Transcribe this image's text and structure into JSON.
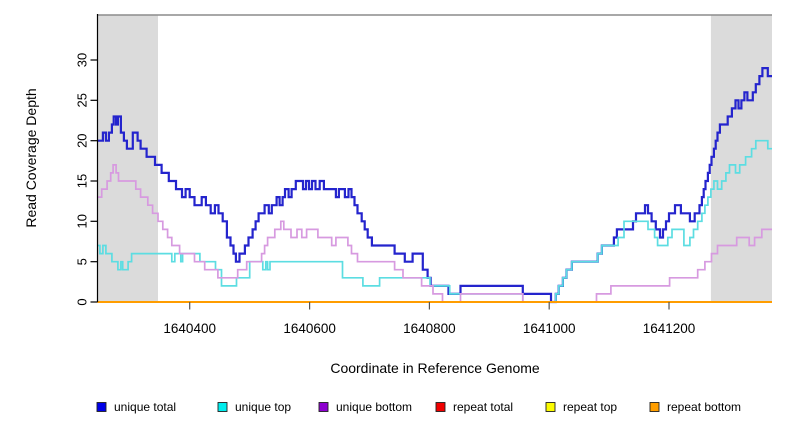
{
  "chart_data": {
    "type": "line",
    "subtype": "step-coverage",
    "title": "",
    "xlabel": "Coordinate in Reference Genome",
    "ylabel": "Read Coverage Depth",
    "xlim": [
      1640246,
      1641372
    ],
    "ylim": [
      0,
      35.5
    ],
    "x_ticks": [
      1640400,
      1640600,
      1640800,
      1641000,
      1641200
    ],
    "x_tick_labels": [
      "1640400",
      "1640600",
      "1640800",
      "1641000",
      "1641200"
    ],
    "y_ticks": [
      0,
      5,
      10,
      15,
      20,
      25,
      30
    ],
    "y_tick_labels": [
      "0",
      "5",
      "10",
      "15",
      "20",
      "25",
      "30"
    ],
    "grid": false,
    "legend_position": "bottom-horizontal",
    "shaded_regions": [
      [
        1640246,
        1640347
      ],
      [
        1641270,
        1641372
      ]
    ],
    "shaded_region_color": "#dbdbdb",
    "plot_border_color": "#8c8c8c",
    "series": [
      {
        "name": "unique total",
        "color": "#2424cd",
        "legend_color": "#0000e8",
        "line_width": 2.2,
        "steps": [
          [
            1640246,
            20
          ],
          [
            1640255,
            21
          ],
          [
            1640260,
            20
          ],
          [
            1640265,
            21
          ],
          [
            1640270,
            22
          ],
          [
            1640273,
            23
          ],
          [
            1640277,
            22
          ],
          [
            1640280,
            23
          ],
          [
            1640285,
            21
          ],
          [
            1640290,
            20
          ],
          [
            1640295,
            19
          ],
          [
            1640305,
            21
          ],
          [
            1640313,
            20
          ],
          [
            1640318,
            19
          ],
          [
            1640328,
            18
          ],
          [
            1640342,
            17
          ],
          [
            1640353,
            16
          ],
          [
            1640365,
            15
          ],
          [
            1640377,
            14
          ],
          [
            1640387,
            13
          ],
          [
            1640393,
            14
          ],
          [
            1640400,
            13
          ],
          [
            1640408,
            12
          ],
          [
            1640420,
            13
          ],
          [
            1640427,
            12
          ],
          [
            1640435,
            11
          ],
          [
            1640442,
            12
          ],
          [
            1640448,
            11
          ],
          [
            1640455,
            10
          ],
          [
            1640462,
            8
          ],
          [
            1640468,
            7
          ],
          [
            1640473,
            6
          ],
          [
            1640477,
            5
          ],
          [
            1640483,
            6
          ],
          [
            1640492,
            7
          ],
          [
            1640498,
            8
          ],
          [
            1640505,
            9
          ],
          [
            1640510,
            10
          ],
          [
            1640515,
            11
          ],
          [
            1640525,
            12
          ],
          [
            1640532,
            11
          ],
          [
            1640537,
            12
          ],
          [
            1640545,
            13
          ],
          [
            1640550,
            12
          ],
          [
            1640555,
            13
          ],
          [
            1640559,
            14
          ],
          [
            1640565,
            13
          ],
          [
            1640570,
            14
          ],
          [
            1640577,
            15
          ],
          [
            1640589,
            14
          ],
          [
            1640594,
            15
          ],
          [
            1640599,
            14
          ],
          [
            1640604,
            15
          ],
          [
            1640610,
            14
          ],
          [
            1640617,
            15
          ],
          [
            1640624,
            14
          ],
          [
            1640644,
            13
          ],
          [
            1640649,
            14
          ],
          [
            1640659,
            13
          ],
          [
            1640665,
            14
          ],
          [
            1640670,
            13
          ],
          [
            1640675,
            12
          ],
          [
            1640680,
            11
          ],
          [
            1640687,
            10
          ],
          [
            1640692,
            9
          ],
          [
            1640697,
            8
          ],
          [
            1640704,
            7
          ],
          [
            1640742,
            6
          ],
          [
            1640759,
            5
          ],
          [
            1640772,
            6
          ],
          [
            1640789,
            4
          ],
          [
            1640797,
            3
          ],
          [
            1640802,
            2
          ],
          [
            1640832,
            1
          ],
          [
            1640852,
            2
          ],
          [
            1640956,
            1
          ],
          [
            1641003,
            0
          ],
          [
            1641011,
            1
          ],
          [
            1641016,
            2
          ],
          [
            1641023,
            3
          ],
          [
            1641029,
            4
          ],
          [
            1641038,
            5
          ],
          [
            1641081,
            6
          ],
          [
            1641088,
            7
          ],
          [
            1641108,
            8
          ],
          [
            1641113,
            9
          ],
          [
            1641140,
            10
          ],
          [
            1641145,
            11
          ],
          [
            1641160,
            12
          ],
          [
            1641165,
            11
          ],
          [
            1641171,
            10
          ],
          [
            1641178,
            9
          ],
          [
            1641185,
            8
          ],
          [
            1641190,
            9
          ],
          [
            1641195,
            10
          ],
          [
            1641200,
            11
          ],
          [
            1641210,
            12
          ],
          [
            1641220,
            11
          ],
          [
            1641235,
            10
          ],
          [
            1641243,
            11
          ],
          [
            1641251,
            12
          ],
          [
            1641255,
            13
          ],
          [
            1641258,
            14
          ],
          [
            1641261,
            15
          ],
          [
            1641265,
            16
          ],
          [
            1641268,
            17
          ],
          [
            1641271,
            18
          ],
          [
            1641275,
            19
          ],
          [
            1641278,
            20
          ],
          [
            1641281,
            21
          ],
          [
            1641285,
            22
          ],
          [
            1641298,
            23
          ],
          [
            1641305,
            24
          ],
          [
            1641311,
            25
          ],
          [
            1641316,
            24
          ],
          [
            1641321,
            25
          ],
          [
            1641326,
            26
          ],
          [
            1641331,
            25
          ],
          [
            1641340,
            26
          ],
          [
            1641345,
            27
          ],
          [
            1641351,
            28
          ],
          [
            1641356,
            29
          ],
          [
            1641365,
            28
          ]
        ]
      },
      {
        "name": "unique top",
        "color": "#5cdde2",
        "legend_color": "#00eded",
        "line_width": 1.7,
        "steps": [
          [
            1640246,
            7
          ],
          [
            1640250,
            6
          ],
          [
            1640255,
            7
          ],
          [
            1640260,
            6
          ],
          [
            1640270,
            5
          ],
          [
            1640280,
            4
          ],
          [
            1640285,
            5
          ],
          [
            1640288,
            4
          ],
          [
            1640297,
            5
          ],
          [
            1640303,
            6
          ],
          [
            1640370,
            5
          ],
          [
            1640375,
            6
          ],
          [
            1640385,
            5
          ],
          [
            1640388,
            6
          ],
          [
            1640417,
            5
          ],
          [
            1640443,
            4
          ],
          [
            1640453,
            2
          ],
          [
            1640478,
            3
          ],
          [
            1640500,
            5
          ],
          [
            1640522,
            4
          ],
          [
            1640527,
            5
          ],
          [
            1640530,
            4
          ],
          [
            1640534,
            5
          ],
          [
            1640655,
            3
          ],
          [
            1640689,
            2
          ],
          [
            1640717,
            3
          ],
          [
            1640801,
            2
          ],
          [
            1640834,
            1
          ],
          [
            1640956,
            0
          ],
          [
            1641011,
            1
          ],
          [
            1641016,
            2
          ],
          [
            1641023,
            3
          ],
          [
            1641029,
            4
          ],
          [
            1641038,
            5
          ],
          [
            1641081,
            6
          ],
          [
            1641088,
            7
          ],
          [
            1641115,
            8
          ],
          [
            1641125,
            10
          ],
          [
            1641165,
            9
          ],
          [
            1641176,
            8
          ],
          [
            1641181,
            7
          ],
          [
            1641198,
            8
          ],
          [
            1641205,
            9
          ],
          [
            1641225,
            7
          ],
          [
            1641235,
            8
          ],
          [
            1641241,
            9
          ],
          [
            1641248,
            10
          ],
          [
            1641255,
            11
          ],
          [
            1641260,
            12
          ],
          [
            1641265,
            13
          ],
          [
            1641270,
            14
          ],
          [
            1641275,
            15
          ],
          [
            1641281,
            14
          ],
          [
            1641288,
            15
          ],
          [
            1641295,
            16
          ],
          [
            1641301,
            17
          ],
          [
            1641311,
            16
          ],
          [
            1641318,
            17
          ],
          [
            1641328,
            18
          ],
          [
            1641338,
            19
          ],
          [
            1641345,
            20
          ],
          [
            1641365,
            19
          ]
        ]
      },
      {
        "name": "unique bottom",
        "color": "#d79ae0",
        "legend_color": "#8d00cf",
        "line_width": 1.7,
        "steps": [
          [
            1640246,
            13
          ],
          [
            1640253,
            14
          ],
          [
            1640262,
            15
          ],
          [
            1640268,
            16
          ],
          [
            1640272,
            17
          ],
          [
            1640277,
            16
          ],
          [
            1640281,
            15
          ],
          [
            1640310,
            14
          ],
          [
            1640318,
            13
          ],
          [
            1640330,
            12
          ],
          [
            1640338,
            11
          ],
          [
            1640347,
            10
          ],
          [
            1640355,
            9
          ],
          [
            1640363,
            8
          ],
          [
            1640370,
            7
          ],
          [
            1640383,
            6
          ],
          [
            1640408,
            5
          ],
          [
            1640425,
            4
          ],
          [
            1640447,
            3
          ],
          [
            1640480,
            4
          ],
          [
            1640495,
            5
          ],
          [
            1640520,
            6
          ],
          [
            1640525,
            7
          ],
          [
            1640530,
            8
          ],
          [
            1640542,
            9
          ],
          [
            1640552,
            10
          ],
          [
            1640557,
            9
          ],
          [
            1640569,
            8
          ],
          [
            1640579,
            9
          ],
          [
            1640587,
            8
          ],
          [
            1640595,
            9
          ],
          [
            1640614,
            8
          ],
          [
            1640637,
            7
          ],
          [
            1640644,
            8
          ],
          [
            1640664,
            7
          ],
          [
            1640670,
            6
          ],
          [
            1640680,
            5
          ],
          [
            1640742,
            4
          ],
          [
            1640756,
            3
          ],
          [
            1640787,
            2
          ],
          [
            1640806,
            1
          ],
          [
            1640822,
            0
          ],
          [
            1640852,
            1
          ],
          [
            1640956,
            0
          ],
          [
            1641079,
            1
          ],
          [
            1641103,
            2
          ],
          [
            1641201,
            3
          ],
          [
            1641248,
            4
          ],
          [
            1641260,
            5
          ],
          [
            1641271,
            6
          ],
          [
            1641281,
            7
          ],
          [
            1641313,
            8
          ],
          [
            1641334,
            7
          ],
          [
            1641343,
            8
          ],
          [
            1641355,
            9
          ]
        ]
      },
      {
        "name": "repeat total",
        "color": "#e00000",
        "legend_color": "#f00000",
        "line_width": 1.4,
        "steps": [
          [
            1640246,
            0
          ]
        ]
      },
      {
        "name": "repeat top",
        "color": "#ffff00",
        "legend_color": "#fbfb00",
        "line_width": 1.4,
        "steps": [
          [
            1640246,
            0
          ]
        ]
      },
      {
        "name": "repeat bottom",
        "color": "#ff9d00",
        "legend_color": "#ff9e00",
        "line_width": 2,
        "steps": [
          [
            1640246,
            0
          ]
        ]
      }
    ]
  }
}
